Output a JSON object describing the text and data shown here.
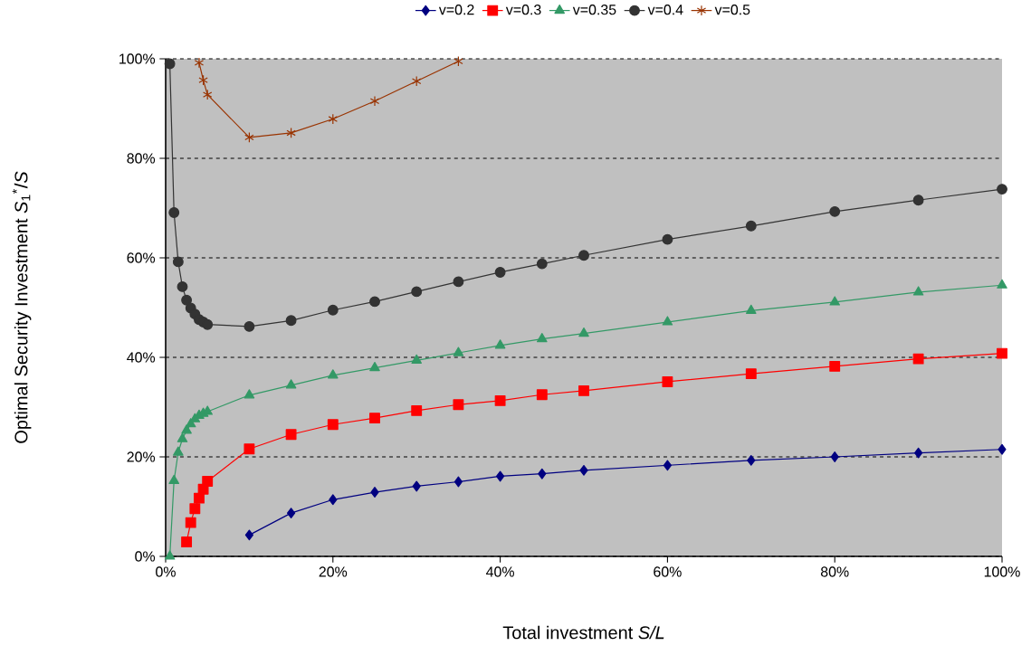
{
  "chart_data": {
    "type": "line",
    "xlabel": "Total investment *S/L*",
    "ylabel": "Optimal Security Investment *S*$_{1}$$^{*}$/*S*",
    "xlim": [
      0,
      100
    ],
    "ylim": [
      0,
      100
    ],
    "xticks": [
      {
        "value": 0,
        "label": "0%"
      },
      {
        "value": 20,
        "label": "20%"
      },
      {
        "value": 40,
        "label": "40%"
      },
      {
        "value": 60,
        "label": "60%"
      },
      {
        "value": 80,
        "label": "80%"
      },
      {
        "value": 100,
        "label": "100%"
      }
    ],
    "yticks": [
      {
        "value": 0,
        "label": "0%"
      },
      {
        "value": 20,
        "label": "20%"
      },
      {
        "value": 40,
        "label": "40%"
      },
      {
        "value": 60,
        "label": "60%"
      },
      {
        "value": 80,
        "label": "80%"
      },
      {
        "value": 100,
        "label": "100%"
      }
    ],
    "grid": "y",
    "legend": "top",
    "series": [
      {
        "name": "v=0.2",
        "color": "#000080",
        "marker": "diamond",
        "x": [
          10,
          15,
          20,
          25,
          30,
          35,
          40,
          45,
          50,
          60,
          70,
          80,
          90,
          100
        ],
        "values": [
          4.3,
          8.7,
          11.4,
          12.9,
          14.1,
          15.0,
          16.1,
          16.6,
          17.3,
          18.3,
          19.3,
          20.0,
          20.8,
          21.5
        ]
      },
      {
        "name": "v=0.3",
        "color": "#ff0000",
        "marker": "square",
        "x": [
          2.5,
          3,
          3.5,
          4,
          4.5,
          5,
          10,
          15,
          20,
          25,
          30,
          35,
          40,
          45,
          50,
          60,
          70,
          80,
          90,
          100
        ],
        "values": [
          2.9,
          6.8,
          9.6,
          11.7,
          13.5,
          15.1,
          21.6,
          24.5,
          26.5,
          27.8,
          29.3,
          30.5,
          31.3,
          32.5,
          33.3,
          35.1,
          36.7,
          38.2,
          39.7,
          40.8
        ]
      },
      {
        "name": "v=0.35",
        "color": "#339966",
        "marker": "triangle",
        "x": [
          0.5,
          1,
          1.5,
          2,
          2.5,
          3,
          3.5,
          4,
          4.5,
          5,
          10,
          15,
          20,
          25,
          30,
          35,
          40,
          45,
          50,
          60,
          70,
          80,
          90,
          100
        ],
        "values": [
          0,
          15.2,
          20.9,
          23.6,
          25.3,
          26.6,
          27.6,
          28.3,
          28.7,
          29.1,
          32.4,
          34.4,
          36.4,
          37.9,
          39.4,
          40.9,
          42.4,
          43.7,
          44.8,
          47.1,
          49.4,
          51.1,
          53.1,
          54.5
        ]
      },
      {
        "name": "v=0.4",
        "color": "#333333",
        "marker": "circle",
        "x": [
          0.5,
          1,
          1.5,
          2,
          2.5,
          3,
          3.5,
          4,
          4.5,
          5,
          10,
          15,
          20,
          25,
          30,
          35,
          40,
          45,
          50,
          60,
          70,
          80,
          90,
          100
        ],
        "values": [
          99.0,
          69.1,
          59.2,
          54.2,
          51.5,
          49.9,
          48.7,
          47.6,
          47.1,
          46.6,
          46.2,
          47.4,
          49.5,
          51.2,
          53.2,
          55.2,
          57.1,
          58.8,
          60.5,
          63.7,
          66.4,
          69.3,
          71.6,
          73.8
        ]
      },
      {
        "name": "v=0.5",
        "color": "#993300",
        "marker": "cross",
        "x": [
          4,
          4.5,
          5,
          10,
          15,
          20,
          25,
          30,
          35
        ],
        "values": [
          99.2,
          95.7,
          92.8,
          84.2,
          85.1,
          87.9,
          91.5,
          95.5,
          99.5
        ]
      }
    ]
  }
}
